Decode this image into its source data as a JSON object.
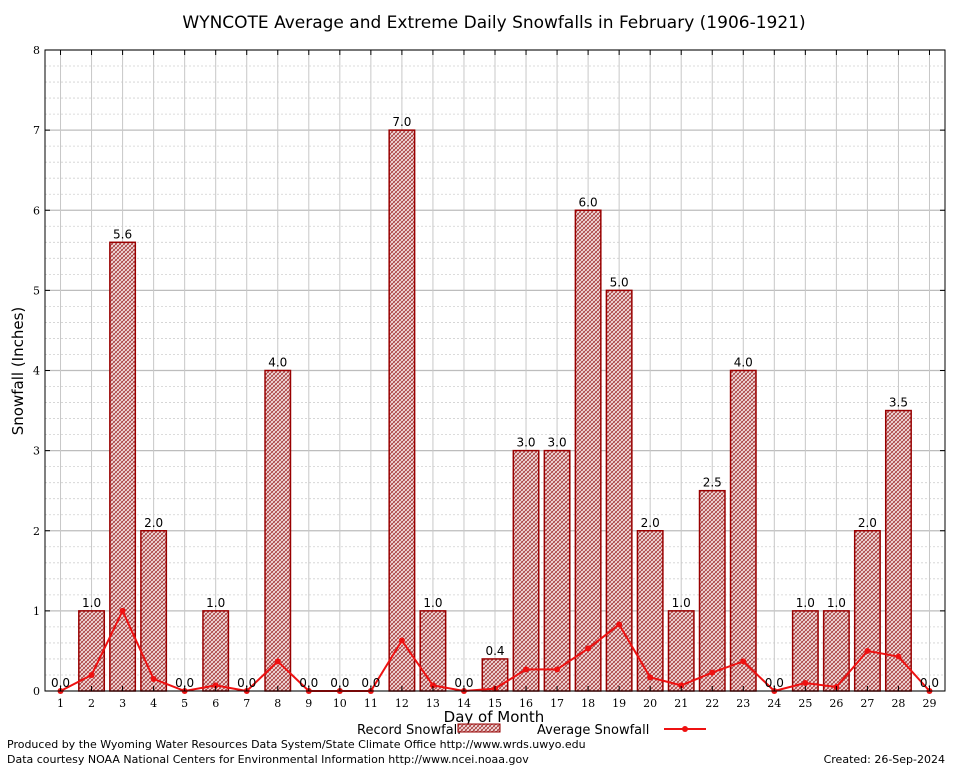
{
  "chart_data": {
    "type": "bar",
    "title": "WYNCOTE Average and Extreme Daily Snowfalls in February (1906-1921)",
    "xlabel": "Day of Month",
    "ylabel": "Snowfall (Inches)",
    "ylim": [
      0,
      8
    ],
    "yticks": [
      0,
      1,
      2,
      3,
      4,
      5,
      6,
      7,
      8
    ],
    "categories": [
      "1",
      "2",
      "3",
      "4",
      "5",
      "6",
      "7",
      "8",
      "9",
      "10",
      "11",
      "12",
      "13",
      "14",
      "15",
      "16",
      "17",
      "18",
      "19",
      "20",
      "21",
      "22",
      "23",
      "24",
      "25",
      "26",
      "27",
      "28",
      "29"
    ],
    "series": [
      {
        "name": "Record Snowfall",
        "kind": "bar",
        "color": "#990000",
        "values": [
          0.0,
          1.0,
          5.6,
          2.0,
          0.0,
          1.0,
          0.0,
          4.0,
          0.0,
          0.0,
          0.0,
          7.0,
          1.0,
          0.0,
          0.4,
          3.0,
          3.0,
          6.0,
          5.0,
          2.0,
          1.0,
          2.5,
          4.0,
          0.0,
          1.0,
          1.0,
          2.0,
          3.5,
          0.0
        ],
        "labels": [
          "0.0",
          "1.0",
          "5.6",
          "2.0",
          "0.0",
          "1.0",
          "0.0",
          "4.0",
          "0.0",
          "0.0",
          "0.0",
          "7.0",
          "1.0",
          "0.0",
          "0.4",
          "3.0",
          "3.0",
          "6.0",
          "5.0",
          "2.0",
          "1.0",
          "2.5",
          "4.0",
          "0.0",
          "1.0",
          "1.0",
          "2.0",
          "3.5",
          "0.0"
        ]
      },
      {
        "name": "Average Snowfall",
        "kind": "line",
        "color": "#ee1111",
        "values": [
          0.0,
          0.2,
          1.0,
          0.15,
          0.0,
          0.07,
          0.0,
          0.37,
          0.0,
          0.0,
          0.0,
          0.63,
          0.07,
          0.0,
          0.03,
          0.27,
          0.27,
          0.53,
          0.83,
          0.17,
          0.07,
          0.23,
          0.37,
          0.0,
          0.1,
          0.05,
          0.5,
          0.43,
          0.0
        ]
      }
    ],
    "grid": true,
    "legend_position": "bottom-center"
  },
  "footer": {
    "produced_by": "Produced by the Wyoming Water Resources Data System/State Climate Office http://www.wrds.uwyo.edu",
    "data_courtesy": "Data courtesy NOAA National Centers for Environmental Information http://www.ncei.noaa.gov",
    "created": "Created: 26-Sep-2024"
  }
}
